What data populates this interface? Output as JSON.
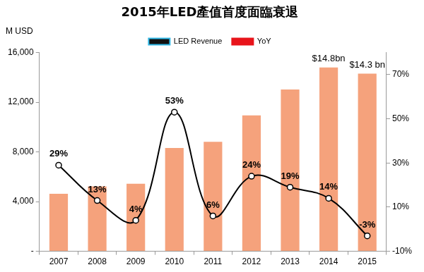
{
  "chart_data": {
    "type": "bar",
    "title": "2015年LED產值首度面臨衰退",
    "ylabel": "M USD",
    "categories": [
      "2007",
      "2008",
      "2009",
      "2010",
      "2011",
      "2012",
      "2013",
      "2014",
      "2015"
    ],
    "series": [
      {
        "name": "LED Revenue",
        "type": "bar",
        "color": "#F5A27C",
        "values": [
          4630,
          5230,
          5440,
          8320,
          8820,
          10940,
          13020,
          14800,
          14300
        ],
        "value_labels": [
          null,
          null,
          null,
          null,
          null,
          null,
          null,
          "$14.8bn",
          "$14.3 bn"
        ]
      },
      {
        "name": "YoY",
        "type": "line",
        "axis": "y2",
        "color": "#000000",
        "marker": "circle",
        "line_style": "solid",
        "values": [
          29,
          13,
          4,
          53,
          6,
          24,
          19,
          14,
          -3
        ],
        "value_labels": [
          "29%",
          "13%",
          "4%",
          "53%",
          "6%",
          "24%",
          "19%",
          "14%",
          "-3%"
        ]
      }
    ],
    "ylim": [
      0,
      16000
    ],
    "yticks": [
      {
        "value": 0,
        "label": "-"
      },
      {
        "value": 4000,
        "label": "4,000"
      },
      {
        "value": 8000,
        "label": "8,000"
      },
      {
        "value": 12000,
        "label": "12,000"
      },
      {
        "value": 16000,
        "label": "16,000"
      }
    ],
    "y2lim": [
      -10,
      80
    ],
    "y2ticks": [
      {
        "value": -10,
        "label": "-10%"
      },
      {
        "value": 10,
        "label": "10%"
      },
      {
        "value": 30,
        "label": "30%"
      },
      {
        "value": 50,
        "label": "50%"
      },
      {
        "value": 70,
        "label": "70%"
      }
    ],
    "grid": false,
    "legend": "top",
    "data_labels": true
  }
}
